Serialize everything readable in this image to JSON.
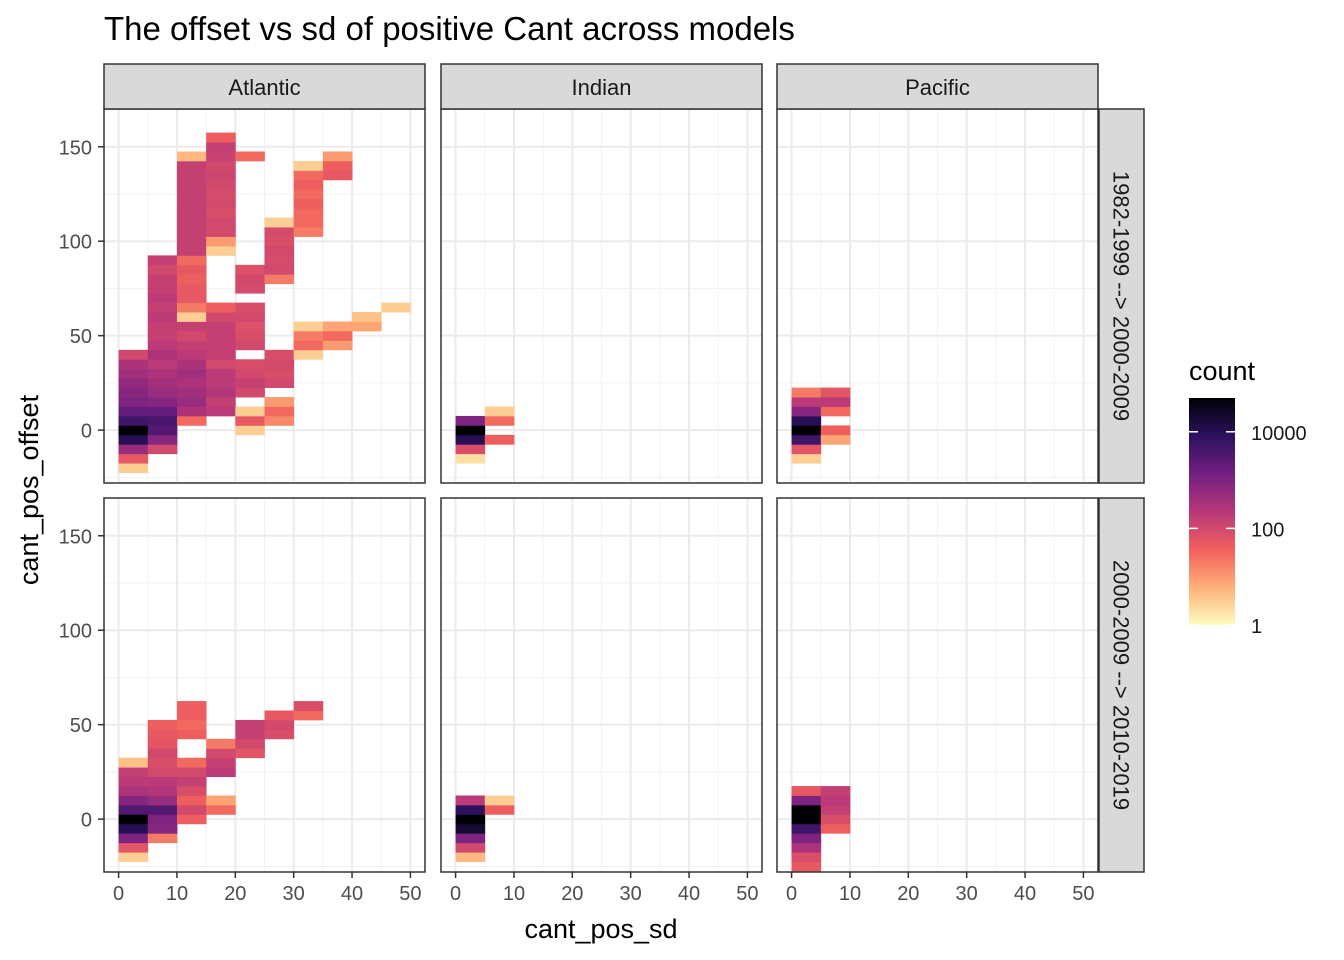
{
  "chart_data": {
    "type": "heatmap",
    "title": "The offset vs sd of positive Cant across models",
    "xlabel": "cant_pos_sd",
    "ylabel": "cant_pos_offset",
    "xlim": [
      -2.5,
      52.5
    ],
    "ylim": [
      -28,
      170
    ],
    "xticks": [
      0,
      10,
      20,
      30,
      40,
      50
    ],
    "xtick_labels": [
      "0",
      "10",
      "20",
      "30",
      "40",
      "50"
    ],
    "yticks": [
      0,
      50,
      100,
      150
    ],
    "ytick_labels": [
      "0",
      "50",
      "100",
      "150"
    ],
    "bin_width_x": 5,
    "bin_height_y": 5,
    "columns": [
      "Atlantic",
      "Indian",
      "Pacific"
    ],
    "rows": [
      "1982-1999 --> 2000-2009",
      "2000-2009 --> 2010-2019"
    ],
    "legend": {
      "title": "count",
      "scale": "log10",
      "min": 1,
      "max": 50000,
      "ticks": [
        1,
        100,
        10000
      ],
      "tick_labels": [
        "1",
        "100",
        "10000"
      ],
      "colors": [
        "#fcfdbf",
        "#feb078",
        "#f1605d",
        "#b73779",
        "#721f81",
        "#2c115f",
        "#000004"
      ],
      "position": "right"
    },
    "panels": [
      {
        "row": 0,
        "col": 0,
        "cells": [
          [
            2.5,
            -20,
            3
          ],
          [
            2.5,
            -15,
            50
          ],
          [
            2.5,
            -10,
            500
          ],
          [
            2.5,
            -5,
            10000
          ],
          [
            2.5,
            0,
            50000
          ],
          [
            2.5,
            5,
            5000
          ],
          [
            2.5,
            10,
            2000
          ],
          [
            2.5,
            15,
            1000
          ],
          [
            2.5,
            20,
            800
          ],
          [
            2.5,
            25,
            600
          ],
          [
            2.5,
            30,
            400
          ],
          [
            2.5,
            35,
            300
          ],
          [
            2.5,
            40,
            100
          ],
          [
            7.5,
            -10,
            100
          ],
          [
            7.5,
            -5,
            800
          ],
          [
            7.5,
            0,
            3000
          ],
          [
            7.5,
            5,
            4000
          ],
          [
            7.5,
            10,
            2000
          ],
          [
            7.5,
            15,
            800
          ],
          [
            7.5,
            20,
            500
          ],
          [
            7.5,
            25,
            400
          ],
          [
            7.5,
            30,
            300
          ],
          [
            7.5,
            35,
            200
          ],
          [
            7.5,
            40,
            300
          ],
          [
            7.5,
            45,
            200
          ],
          [
            7.5,
            50,
            150
          ],
          [
            7.5,
            55,
            150
          ],
          [
            7.5,
            60,
            200
          ],
          [
            7.5,
            65,
            150
          ],
          [
            7.5,
            70,
            200
          ],
          [
            7.5,
            75,
            150
          ],
          [
            7.5,
            80,
            150
          ],
          [
            7.5,
            85,
            100
          ],
          [
            7.5,
            90,
            150
          ],
          [
            12.5,
            5,
            30
          ],
          [
            12.5,
            10,
            300
          ],
          [
            12.5,
            15,
            500
          ],
          [
            12.5,
            20,
            400
          ],
          [
            12.5,
            25,
            300
          ],
          [
            12.5,
            30,
            400
          ],
          [
            12.5,
            35,
            300
          ],
          [
            12.5,
            40,
            200
          ],
          [
            12.5,
            45,
            150
          ],
          [
            12.5,
            50,
            100
          ],
          [
            12.5,
            55,
            150
          ],
          [
            12.5,
            60,
            3
          ],
          [
            12.5,
            65,
            20
          ],
          [
            12.5,
            70,
            50
          ],
          [
            12.5,
            75,
            50
          ],
          [
            12.5,
            80,
            40
          ],
          [
            12.5,
            85,
            50
          ],
          [
            12.5,
            90,
            30
          ],
          [
            12.5,
            95,
            150
          ],
          [
            12.5,
            100,
            150
          ],
          [
            12.5,
            105,
            150
          ],
          [
            12.5,
            110,
            150
          ],
          [
            12.5,
            115,
            150
          ],
          [
            12.5,
            120,
            150
          ],
          [
            12.5,
            125,
            150
          ],
          [
            12.5,
            130,
            150
          ],
          [
            12.5,
            135,
            150
          ],
          [
            12.5,
            140,
            150
          ],
          [
            12.5,
            145,
            5
          ],
          [
            17.5,
            10,
            200
          ],
          [
            17.5,
            15,
            150
          ],
          [
            17.5,
            20,
            250
          ],
          [
            17.5,
            25,
            200
          ],
          [
            17.5,
            30,
            200
          ],
          [
            17.5,
            35,
            100
          ],
          [
            17.5,
            40,
            150
          ],
          [
            17.5,
            45,
            150
          ],
          [
            17.5,
            50,
            150
          ],
          [
            17.5,
            55,
            150
          ],
          [
            17.5,
            60,
            100
          ],
          [
            17.5,
            65,
            40
          ],
          [
            17.5,
            95,
            3
          ],
          [
            17.5,
            100,
            10
          ],
          [
            17.5,
            105,
            100
          ],
          [
            17.5,
            110,
            100
          ],
          [
            17.5,
            115,
            80
          ],
          [
            17.5,
            120,
            100
          ],
          [
            17.5,
            125,
            90
          ],
          [
            17.5,
            130,
            100
          ],
          [
            17.5,
            135,
            120
          ],
          [
            17.5,
            140,
            100
          ],
          [
            17.5,
            145,
            130
          ],
          [
            17.5,
            150,
            150
          ],
          [
            17.5,
            155,
            40
          ],
          [
            22.5,
            0,
            3
          ],
          [
            22.5,
            5,
            50
          ],
          [
            22.5,
            10,
            3
          ],
          [
            22.5,
            20,
            100
          ],
          [
            22.5,
            25,
            150
          ],
          [
            22.5,
            30,
            100
          ],
          [
            22.5,
            35,
            80
          ],
          [
            22.5,
            45,
            100
          ],
          [
            22.5,
            50,
            80
          ],
          [
            22.5,
            55,
            70
          ],
          [
            22.5,
            60,
            100
          ],
          [
            22.5,
            65,
            80
          ],
          [
            22.5,
            75,
            90
          ],
          [
            22.5,
            80,
            100
          ],
          [
            22.5,
            85,
            70
          ],
          [
            22.5,
            145,
            30
          ],
          [
            27.5,
            5,
            15
          ],
          [
            27.5,
            10,
            30
          ],
          [
            27.5,
            15,
            10
          ],
          [
            27.5,
            25,
            100
          ],
          [
            27.5,
            30,
            80
          ],
          [
            27.5,
            35,
            100
          ],
          [
            27.5,
            40,
            80
          ],
          [
            27.5,
            80,
            20
          ],
          [
            27.5,
            85,
            100
          ],
          [
            27.5,
            90,
            90
          ],
          [
            27.5,
            95,
            100
          ],
          [
            27.5,
            100,
            80
          ],
          [
            27.5,
            105,
            90
          ],
          [
            27.5,
            110,
            3
          ],
          [
            32.5,
            40,
            3
          ],
          [
            32.5,
            45,
            30
          ],
          [
            32.5,
            50,
            20
          ],
          [
            32.5,
            55,
            3
          ],
          [
            32.5,
            105,
            20
          ],
          [
            32.5,
            110,
            30
          ],
          [
            32.5,
            115,
            30
          ],
          [
            32.5,
            120,
            40
          ],
          [
            32.5,
            125,
            30
          ],
          [
            32.5,
            130,
            40
          ],
          [
            32.5,
            135,
            30
          ],
          [
            32.5,
            140,
            3
          ],
          [
            37.5,
            45,
            10
          ],
          [
            37.5,
            50,
            30
          ],
          [
            37.5,
            55,
            8
          ],
          [
            37.5,
            135,
            50
          ],
          [
            37.5,
            140,
            40
          ],
          [
            37.5,
            145,
            10
          ],
          [
            42.5,
            55,
            8
          ],
          [
            42.5,
            60,
            4
          ],
          [
            47.5,
            65,
            3
          ]
        ]
      },
      {
        "row": 0,
        "col": 1,
        "cells": [
          [
            2.5,
            -15,
            2
          ],
          [
            2.5,
            -10,
            80
          ],
          [
            2.5,
            -5,
            10000
          ],
          [
            2.5,
            0,
            50000
          ],
          [
            2.5,
            5,
            1000
          ],
          [
            7.5,
            -5,
            40
          ],
          [
            7.5,
            5,
            30
          ],
          [
            7.5,
            10,
            3
          ]
        ]
      },
      {
        "row": 0,
        "col": 2,
        "cells": [
          [
            2.5,
            -15,
            3
          ],
          [
            2.5,
            -10,
            60
          ],
          [
            2.5,
            -5,
            5000
          ],
          [
            2.5,
            0,
            50000
          ],
          [
            2.5,
            5,
            10000
          ],
          [
            2.5,
            10,
            800
          ],
          [
            2.5,
            15,
            200
          ],
          [
            2.5,
            20,
            20
          ],
          [
            7.5,
            -5,
            8
          ],
          [
            7.5,
            0,
            40
          ],
          [
            7.5,
            10,
            30
          ],
          [
            7.5,
            15,
            200
          ],
          [
            7.5,
            20,
            60
          ]
        ]
      },
      {
        "row": 1,
        "col": 0,
        "cells": [
          [
            2.5,
            -20,
            3
          ],
          [
            2.5,
            -15,
            60
          ],
          [
            2.5,
            -10,
            1000
          ],
          [
            2.5,
            -5,
            10000
          ],
          [
            2.5,
            0,
            50000
          ],
          [
            2.5,
            5,
            3000
          ],
          [
            2.5,
            10,
            800
          ],
          [
            2.5,
            15,
            300
          ],
          [
            2.5,
            20,
            200
          ],
          [
            2.5,
            25,
            150
          ],
          [
            2.5,
            30,
            4
          ],
          [
            7.5,
            -10,
            20
          ],
          [
            7.5,
            -5,
            800
          ],
          [
            7.5,
            0,
            1000
          ],
          [
            7.5,
            5,
            3000
          ],
          [
            7.5,
            10,
            500
          ],
          [
            7.5,
            15,
            250
          ],
          [
            7.5,
            20,
            200
          ],
          [
            7.5,
            25,
            100
          ],
          [
            7.5,
            30,
            80
          ],
          [
            7.5,
            35,
            100
          ],
          [
            7.5,
            40,
            60
          ],
          [
            7.5,
            45,
            50
          ],
          [
            7.5,
            50,
            40
          ],
          [
            12.5,
            0,
            40
          ],
          [
            12.5,
            5,
            100
          ],
          [
            12.5,
            10,
            40
          ],
          [
            12.5,
            15,
            80
          ],
          [
            12.5,
            20,
            150
          ],
          [
            12.5,
            25,
            100
          ],
          [
            12.5,
            30,
            30
          ],
          [
            12.5,
            45,
            40
          ],
          [
            12.5,
            50,
            30
          ],
          [
            12.5,
            55,
            40
          ],
          [
            12.5,
            60,
            40
          ],
          [
            17.5,
            5,
            30
          ],
          [
            17.5,
            10,
            8
          ],
          [
            17.5,
            25,
            200
          ],
          [
            17.5,
            30,
            150
          ],
          [
            17.5,
            35,
            100
          ],
          [
            17.5,
            40,
            20
          ],
          [
            22.5,
            35,
            60
          ],
          [
            22.5,
            40,
            100
          ],
          [
            22.5,
            45,
            150
          ],
          [
            22.5,
            50,
            150
          ],
          [
            27.5,
            45,
            80
          ],
          [
            27.5,
            50,
            100
          ],
          [
            27.5,
            55,
            50
          ],
          [
            32.5,
            55,
            30
          ],
          [
            32.5,
            60,
            80
          ]
        ]
      },
      {
        "row": 1,
        "col": 1,
        "cells": [
          [
            2.5,
            -20,
            5
          ],
          [
            2.5,
            -15,
            100
          ],
          [
            2.5,
            -10,
            1000
          ],
          [
            2.5,
            -5,
            20000
          ],
          [
            2.5,
            0,
            50000
          ],
          [
            2.5,
            5,
            8000
          ],
          [
            2.5,
            10,
            200
          ],
          [
            7.5,
            5,
            40
          ],
          [
            7.5,
            10,
            3
          ]
        ]
      },
      {
        "row": 1,
        "col": 2,
        "cells": [
          [
            2.5,
            -25,
            50
          ],
          [
            2.5,
            -20,
            80
          ],
          [
            2.5,
            -15,
            300
          ],
          [
            2.5,
            -10,
            1000
          ],
          [
            2.5,
            -5,
            5000
          ],
          [
            2.5,
            0,
            50000
          ],
          [
            2.5,
            5,
            50000
          ],
          [
            2.5,
            10,
            1000
          ],
          [
            2.5,
            15,
            50
          ],
          [
            7.5,
            -5,
            40
          ],
          [
            7.5,
            0,
            80
          ],
          [
            7.5,
            5,
            150
          ],
          [
            7.5,
            10,
            200
          ],
          [
            7.5,
            15,
            150
          ]
        ]
      }
    ]
  }
}
